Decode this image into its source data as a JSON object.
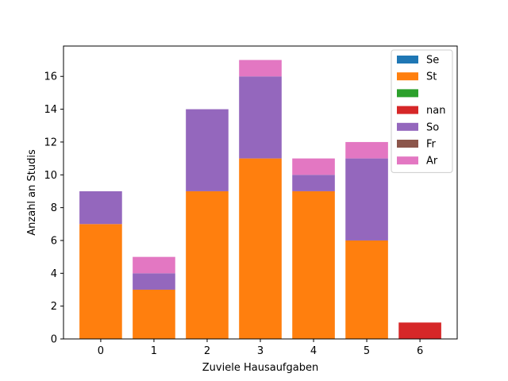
{
  "chart_data": {
    "type": "bar",
    "stacked": true,
    "categories": [
      "0",
      "1",
      "2",
      "3",
      "4",
      "5",
      "6"
    ],
    "xlabel": "Zuviele Hausaufgaben",
    "ylabel": "Anzahl an Studis",
    "ylim": [
      0,
      17.85
    ],
    "yticks": [
      0,
      2,
      4,
      6,
      8,
      10,
      12,
      14,
      16
    ],
    "grid": false,
    "legend_position": "top-right",
    "series": [
      {
        "name": "Se",
        "color": "#1f77b4",
        "values": [
          0,
          0,
          0,
          0,
          0,
          0,
          0
        ]
      },
      {
        "name": "St",
        "color": "#ff7f0e",
        "values": [
          7,
          3,
          9,
          11,
          9,
          6,
          0
        ]
      },
      {
        "name": "",
        "color": "#2ca02c",
        "values": [
          0,
          0,
          0,
          0,
          0,
          0,
          0
        ]
      },
      {
        "name": "nan",
        "color": "#d62728",
        "values": [
          0,
          0,
          0,
          0,
          0,
          0,
          1
        ]
      },
      {
        "name": "So",
        "color": "#9467bd",
        "values": [
          2,
          1,
          5,
          5,
          1,
          5,
          0
        ]
      },
      {
        "name": "Fr",
        "color": "#8c564b",
        "values": [
          0,
          0,
          0,
          0,
          0,
          0,
          0
        ]
      },
      {
        "name": "Ar",
        "color": "#e377c2",
        "values": [
          0,
          1,
          0,
          1,
          1,
          1,
          0
        ]
      }
    ]
  }
}
